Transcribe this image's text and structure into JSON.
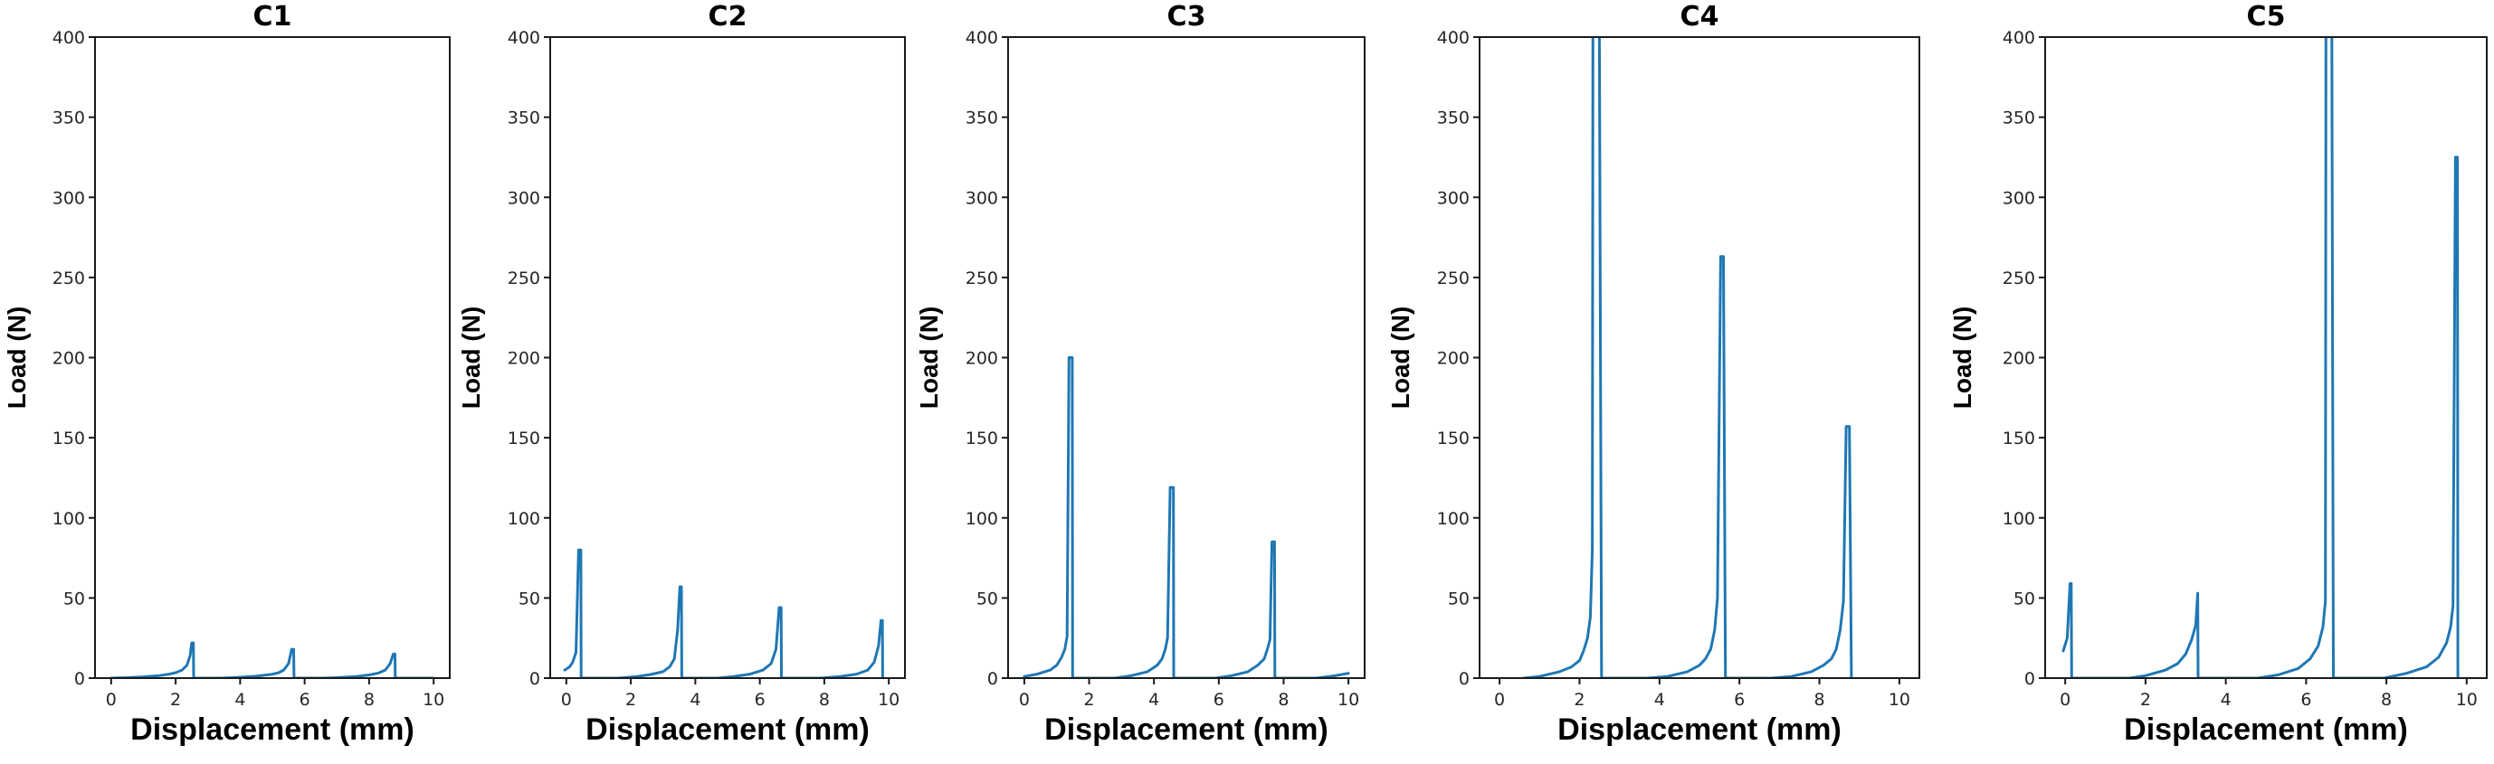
{
  "figure": {
    "line_color": "#1f77b4"
  },
  "chart_data": [
    {
      "type": "line",
      "title": "C1",
      "xlabel": "Displacement (mm)",
      "ylabel": "Load (N)",
      "xlim": [
        -0.5,
        10.5
      ],
      "ylim": [
        0,
        400
      ],
      "xticks": [
        "0",
        "2",
        "4",
        "6",
        "8",
        "10"
      ],
      "yticks": [
        "0",
        "50",
        "100",
        "150",
        "200",
        "250",
        "300",
        "350",
        "400"
      ],
      "grid": false,
      "series": [
        {
          "name": "C1",
          "x": [
            0.0,
            0.5,
            1.0,
            1.5,
            1.8,
            2.0,
            2.2,
            2.35,
            2.45,
            2.5,
            2.55,
            2.56,
            3.4,
            3.9,
            4.5,
            5.0,
            5.2,
            5.35,
            5.5,
            5.6,
            5.66,
            5.67,
            6.6,
            7.0,
            7.6,
            8.0,
            8.3,
            8.5,
            8.65,
            8.75,
            8.8,
            8.81,
            10.0
          ],
          "y": [
            0,
            0.3,
            0.8,
            1.6,
            2.5,
            3.4,
            5,
            8,
            14,
            22,
            22,
            0,
            0,
            0.4,
            1.2,
            2.4,
            3.4,
            5,
            9,
            18,
            18,
            0,
            0,
            0.3,
            1.0,
            2.0,
            3.2,
            5,
            9,
            15,
            15,
            0,
            0
          ]
        }
      ]
    },
    {
      "type": "line",
      "title": "C2",
      "xlabel": "Displacement (mm)",
      "ylabel": "Load (N)",
      "xlim": [
        -0.5,
        10.5
      ],
      "ylim": [
        0,
        400
      ],
      "xticks": [
        "0",
        "2",
        "4",
        "6",
        "8",
        "10"
      ],
      "yticks": [
        "0",
        "50",
        "100",
        "150",
        "200",
        "250",
        "300",
        "350",
        "400"
      ],
      "grid": false,
      "series": [
        {
          "name": "C2",
          "x": [
            -0.05,
            0.1,
            0.2,
            0.3,
            0.38,
            0.45,
            0.46,
            1.6,
            2.2,
            2.6,
            3.0,
            3.2,
            3.35,
            3.45,
            3.52,
            3.57,
            3.58,
            4.7,
            5.2,
            5.7,
            6.1,
            6.35,
            6.5,
            6.6,
            6.66,
            6.67,
            7.9,
            8.5,
            9.0,
            9.35,
            9.55,
            9.68,
            9.76,
            9.8,
            9.81
          ],
          "y": [
            5,
            7,
            10,
            16,
            80,
            80,
            0,
            0,
            1.0,
            2.2,
            4,
            7,
            12,
            30,
            57,
            57,
            0,
            0,
            1.0,
            2.5,
            5,
            9,
            18,
            44,
            44,
            0,
            0,
            1.0,
            2.5,
            5,
            10,
            20,
            36,
            36,
            0
          ]
        }
      ]
    },
    {
      "type": "line",
      "title": "C3",
      "xlabel": "Displacement (mm)",
      "ylabel": "Load (N)",
      "xlim": [
        -0.5,
        10.5
      ],
      "ylim": [
        0,
        400
      ],
      "xticks": [
        "0",
        "2",
        "4",
        "6",
        "8",
        "10"
      ],
      "yticks": [
        "0",
        "50",
        "100",
        "150",
        "200",
        "250",
        "300",
        "350",
        "400"
      ],
      "grid": false,
      "series": [
        {
          "name": "C3",
          "x": [
            0.0,
            0.4,
            0.8,
            1.0,
            1.15,
            1.25,
            1.32,
            1.38,
            1.48,
            1.49,
            2.8,
            3.3,
            3.8,
            4.1,
            4.25,
            4.35,
            4.42,
            4.5,
            4.6,
            4.61,
            5.9,
            6.4,
            6.9,
            7.2,
            7.4,
            7.5,
            7.58,
            7.64,
            7.72,
            7.73,
            9.0,
            9.5,
            10.0
          ],
          "y": [
            1,
            2.5,
            5,
            8,
            13,
            18,
            26,
            200,
            200,
            0,
            0,
            1.5,
            4,
            8,
            12,
            18,
            25,
            119,
            119,
            0,
            0,
            1.5,
            4,
            8,
            12,
            18,
            24,
            85,
            85,
            0,
            0,
            1.2,
            3
          ]
        }
      ]
    },
    {
      "type": "line",
      "title": "C4",
      "xlabel": "Displacement (mm)",
      "ylabel": "Load (N)",
      "xlim": [
        -0.5,
        10.5
      ],
      "ylim": [
        0,
        400
      ],
      "xticks": [
        "0",
        "2",
        "4",
        "6",
        "8",
        "10"
      ],
      "yticks": [
        "0",
        "50",
        "100",
        "150",
        "200",
        "250",
        "300",
        "350",
        "400"
      ],
      "grid": false,
      "series": [
        {
          "name": "C4",
          "x": [
            0.6,
            1.0,
            1.5,
            1.8,
            2.0,
            2.1,
            2.2,
            2.27,
            2.32,
            2.34,
            2.48,
            2.55,
            2.56,
            3.7,
            4.2,
            4.7,
            5.0,
            5.15,
            5.28,
            5.38,
            5.45,
            5.53,
            5.6,
            5.65,
            5.66,
            6.8,
            7.3,
            7.8,
            8.1,
            8.3,
            8.42,
            8.52,
            8.6,
            8.67,
            8.75,
            8.8,
            8.81
          ],
          "y": [
            0,
            1,
            4,
            7,
            11,
            17,
            25,
            38,
            80,
            520,
            520,
            0,
            0,
            0,
            1,
            4,
            8,
            12,
            18,
            30,
            50,
            263,
            263,
            0,
            0,
            0,
            1,
            4,
            8,
            12,
            18,
            30,
            48,
            157,
            157,
            0,
            0
          ]
        }
      ]
    },
    {
      "type": "line",
      "title": "C5",
      "xlabel": "Displacement (mm)",
      "ylabel": "Load (N)",
      "xlim": [
        -0.5,
        10.5
      ],
      "ylim": [
        0,
        400
      ],
      "xticks": [
        "0",
        "2",
        "4",
        "6",
        "8",
        "10"
      ],
      "yticks": [
        "0",
        "50",
        "100",
        "150",
        "200",
        "250",
        "300",
        "350",
        "400"
      ],
      "grid": false,
      "series": [
        {
          "name": "C5",
          "x": [
            -0.05,
            0.05,
            0.12,
            0.15,
            0.16,
            1.6,
            2.0,
            2.5,
            2.8,
            3.0,
            3.15,
            3.25,
            3.3,
            3.31,
            4.8,
            5.3,
            5.8,
            6.1,
            6.3,
            6.42,
            6.48,
            6.5,
            6.63,
            6.68,
            6.69,
            7.95,
            8.5,
            9.0,
            9.3,
            9.5,
            9.6,
            9.66,
            9.72,
            9.77,
            9.78
          ],
          "y": [
            17,
            25,
            59,
            59,
            0,
            0,
            1.5,
            5,
            9,
            15,
            24,
            33,
            53,
            0,
            0,
            2,
            6,
            12,
            20,
            32,
            48,
            520,
            520,
            0,
            0,
            0,
            3,
            7,
            13,
            22,
            32,
            45,
            325,
            325,
            0
          ]
        }
      ]
    }
  ]
}
